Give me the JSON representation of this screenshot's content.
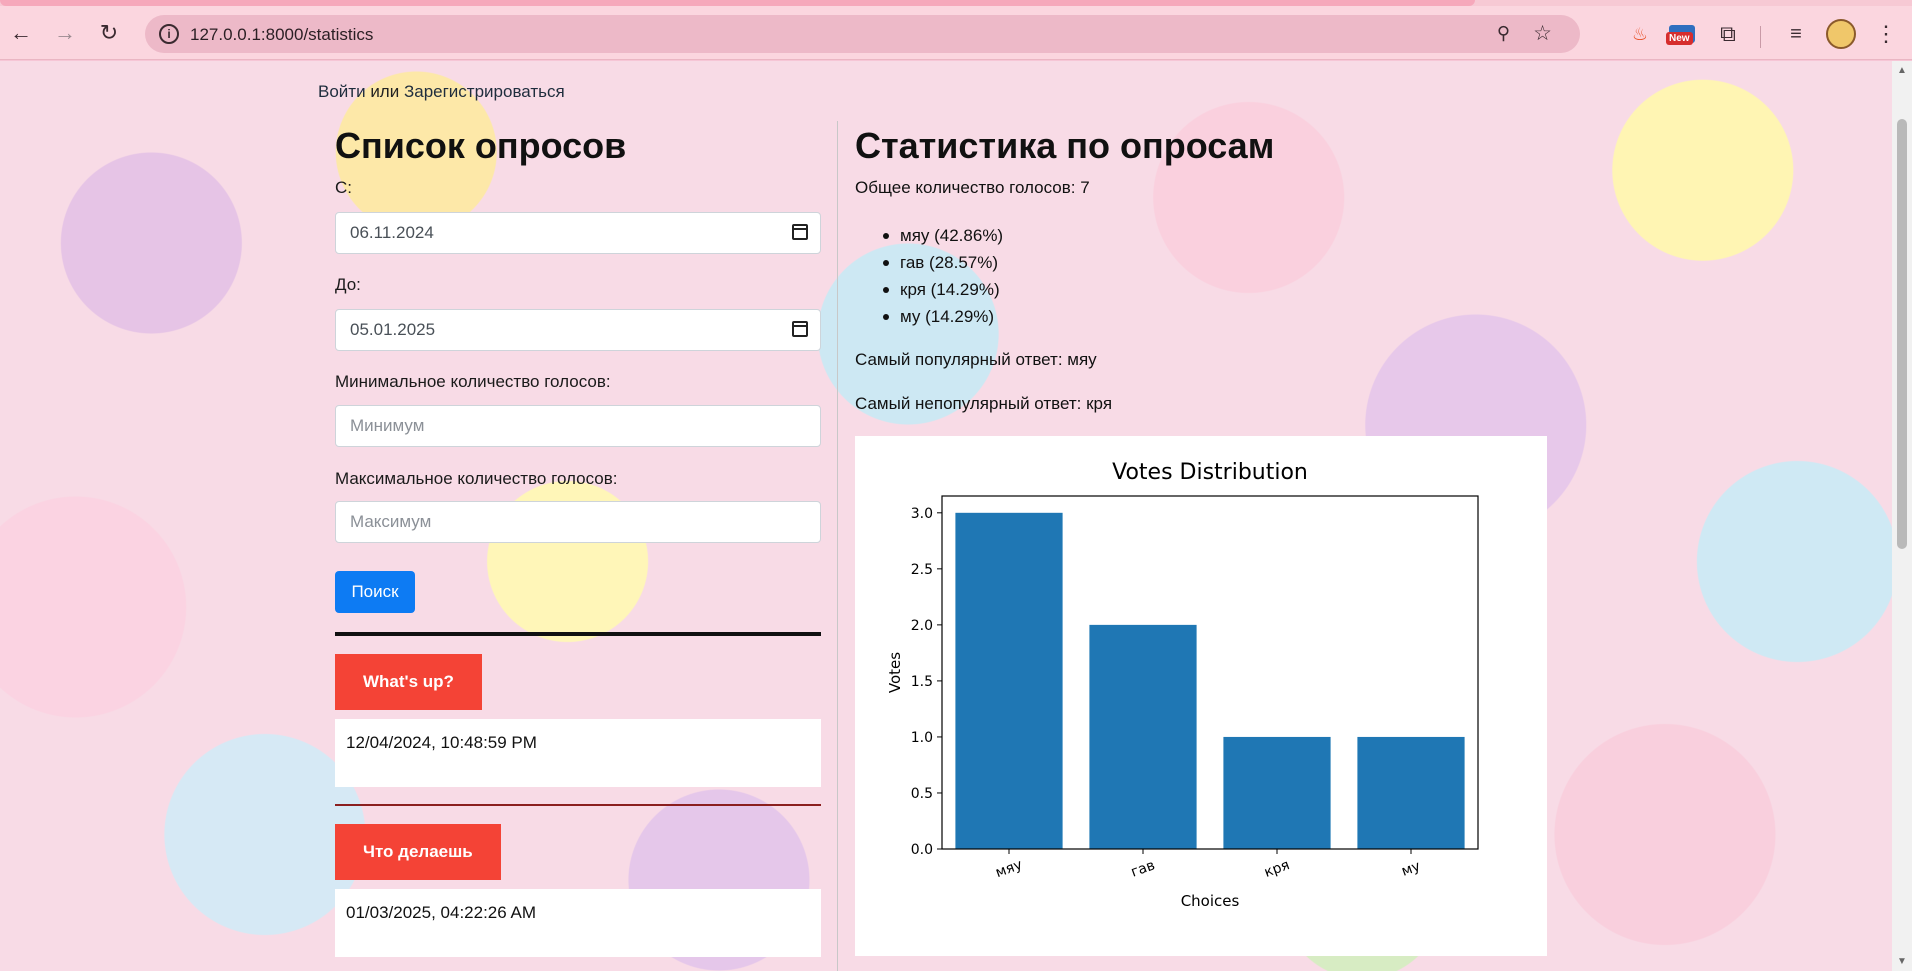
{
  "browser": {
    "url": "127.0.0.1:8000/statistics",
    "new_badge": "New"
  },
  "header": {
    "login_link": "Войти",
    "or_text": "или",
    "register_link": "Зарегистрироваться"
  },
  "left": {
    "title": "Список опросов",
    "from_label": "С:",
    "from_value": "06.11.2024",
    "to_label": "До:",
    "to_value": "05.01.2025",
    "min_label": "Минимальное количество голосов:",
    "min_placeholder": "Минимум",
    "max_label": "Максимальное количество голосов:",
    "max_placeholder": "Максимум",
    "search_button": "Поиск",
    "polls": [
      {
        "title": "What's up?",
        "date": "12/04/2024, 10:48:59 PM"
      },
      {
        "title": "Что делаешь",
        "date": "01/03/2025, 04:22:26 AM"
      }
    ]
  },
  "right": {
    "title": "Статистика по опросам",
    "total_votes": "Общее количество голосов: 7",
    "items": [
      "мяу (42.86%)",
      "гав (28.57%)",
      "кря (14.29%)",
      "му (14.29%)"
    ],
    "most_popular": "Самый популярный ответ: мяу",
    "least_popular": "Самый непопулярный ответ: кря"
  },
  "colors": {
    "bar": "#1f77b4",
    "search_button": "#0d7bf3",
    "poll_title": "#f44336"
  },
  "chart_data": {
    "type": "bar",
    "title": "Votes Distribution",
    "xlabel": "Choices",
    "ylabel": "Votes",
    "categories": [
      "мяу",
      "гав",
      "кря",
      "му"
    ],
    "values": [
      3,
      2,
      1,
      1
    ],
    "ylim": [
      0,
      3.15
    ],
    "yticks": [
      "0.0",
      "0.5",
      "1.0",
      "1.5",
      "2.0",
      "2.5",
      "3.0"
    ],
    "grid": false
  }
}
